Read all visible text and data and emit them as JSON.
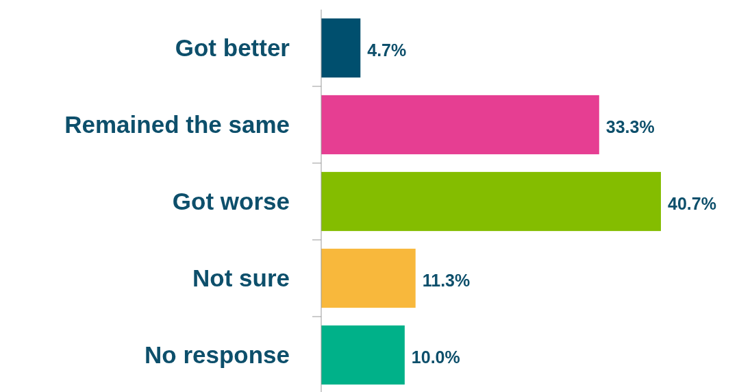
{
  "chart_data": {
    "type": "bar",
    "orientation": "horizontal",
    "categories": [
      "Got better",
      "Remained the same",
      "Got worse",
      "Not sure",
      "No response"
    ],
    "values": [
      4.7,
      33.3,
      40.7,
      11.3,
      10.0
    ],
    "colors": [
      "#004f6e",
      "#e63e92",
      "#84bd00",
      "#f8b83c",
      "#00b189"
    ],
    "value_labels": [
      "4.7%",
      "33.3%",
      "40.7%",
      "11.3%",
      "10.0%"
    ],
    "grid": false
  }
}
